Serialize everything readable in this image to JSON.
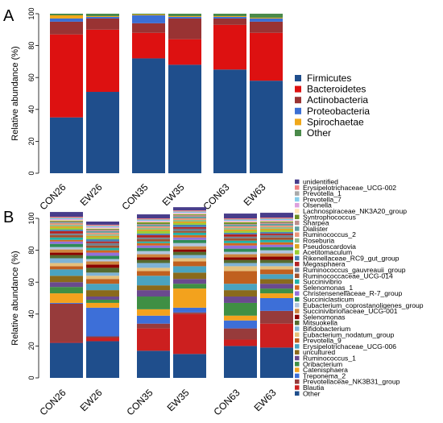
{
  "panels": {
    "a": "A",
    "b": "B"
  },
  "chart_data": [
    {
      "type": "bar",
      "stacked": true,
      "panel": "A",
      "ylabel": "Relative abundance (%)",
      "ylim": [
        0,
        100
      ],
      "yticks": [
        0,
        20,
        40,
        60,
        80,
        100
      ],
      "groups": [
        [
          "CON26",
          "EW26"
        ],
        [
          "CON35",
          "EW35"
        ],
        [
          "CON63",
          "EW63"
        ]
      ],
      "categories": [
        "CON26",
        "EW26",
        "CON35",
        "EW35",
        "CON63",
        "EW63"
      ],
      "legend_position": "right",
      "series": [
        {
          "name": "Firmicutes",
          "color": "#1f4e8c",
          "values": [
            35,
            51,
            72,
            68,
            65,
            58
          ]
        },
        {
          "name": "Bacteroidetes",
          "color": "#dd1111",
          "values": [
            52,
            39,
            16,
            16,
            28,
            30
          ]
        },
        {
          "name": "Actinobacteria",
          "color": "#993333",
          "values": [
            8,
            7,
            6,
            13,
            4,
            7
          ]
        },
        {
          "name": "Proteobacteria",
          "color": "#3b6fd4",
          "values": [
            2,
            1,
            5,
            1,
            1,
            2
          ]
        },
        {
          "name": "Spirochaetae",
          "color": "#f0a81a",
          "values": [
            2,
            0.5,
            0.5,
            0.5,
            0.5,
            0.5
          ]
        },
        {
          "name": "Other",
          "color": "#4a8a4a",
          "values": [
            1,
            1.5,
            0.5,
            1.5,
            1.5,
            2.5
          ]
        }
      ]
    },
    {
      "type": "bar",
      "stacked": true,
      "panel": "B",
      "ylabel": "Relative abundance (%)",
      "ylim": [
        0,
        100
      ],
      "yticks": [
        0,
        20,
        40,
        60,
        80,
        100
      ],
      "groups": [
        [
          "CON26",
          "EW26"
        ],
        [
          "CON35",
          "EW35"
        ],
        [
          "CON63",
          "EW63"
        ]
      ],
      "categories": [
        "CON26",
        "EW26",
        "CON35",
        "EW35",
        "CON63",
        "EW63"
      ],
      "legend_position": "right",
      "series": [
        {
          "name": "Other",
          "color": "#1f4e8c",
          "values": [
            22,
            23,
            17,
            15,
            20,
            19
          ]
        },
        {
          "name": "Blautia",
          "color": "#cc1f1f",
          "values": [
            0.5,
            2,
            14,
            25,
            4,
            15
          ]
        },
        {
          "name": "Prevotellaceae_NK3B31_group",
          "color": "#973b3b",
          "values": [
            24,
            1,
            3,
            1,
            7,
            8
          ]
        },
        {
          "name": "Treponema_2",
          "color": "#3d6fd8",
          "values": [
            0.5,
            18,
            5,
            3,
            5,
            8
          ]
        },
        {
          "name": "Catenisphaera",
          "color": "#f3a21d",
          "values": [
            6,
            3,
            4,
            12,
            3,
            3
          ]
        },
        {
          "name": "Oribacterium",
          "color": "#3f8f44",
          "values": [
            4,
            2,
            8,
            3,
            8,
            3
          ]
        },
        {
          "name": "Ruminococcus_1",
          "color": "#6a4a8e",
          "values": [
            3,
            2,
            4,
            3,
            4,
            3
          ]
        },
        {
          "name": "uncultured",
          "color": "#8a6a1c",
          "values": [
            4,
            4,
            3,
            4,
            4,
            3
          ]
        },
        {
          "name": "Erysipelotrichaceae_UCG-006",
          "color": "#4aa3c0",
          "values": [
            4,
            4,
            6,
            4,
            4,
            3
          ]
        },
        {
          "name": "Prevotella_9",
          "color": "#c0601f",
          "values": [
            2,
            3,
            3,
            3,
            8,
            3
          ]
        },
        {
          "name": "Eubacterium_nodatum_group",
          "color": "#e5c07b",
          "values": [
            2,
            2,
            2,
            2,
            3,
            2
          ]
        },
        {
          "name": "Bifidobacterium",
          "color": "#7fb3d5",
          "values": [
            3,
            2,
            3,
            2,
            2,
            2
          ]
        },
        {
          "name": "Mitsuokella",
          "color": "#556b2f",
          "values": [
            2,
            3,
            2,
            2,
            2,
            2
          ]
        },
        {
          "name": "Selenomonas",
          "color": "#8b0000",
          "values": [
            1.5,
            2,
            1.5,
            1.5,
            1.5,
            2
          ]
        },
        {
          "name": "Succinivibrionaceae_UCG-001",
          "color": "#cd853f",
          "values": [
            2,
            2,
            2,
            2,
            2,
            2
          ]
        },
        {
          "name": "Eubacterium_coprostanoligenes_group",
          "color": "#b0c4de",
          "values": [
            1.5,
            1.5,
            2,
            2,
            1.5,
            2
          ]
        },
        {
          "name": "Succiniclasticum",
          "color": "#2e8b57",
          "values": [
            2,
            2,
            2,
            2,
            2,
            2
          ]
        },
        {
          "name": "Christensenellaceae_R-7_group",
          "color": "#9370db",
          "values": [
            1.5,
            2,
            1.5,
            1.5,
            2,
            1.5
          ]
        },
        {
          "name": "Selenomonas_1",
          "color": "#d2691e",
          "values": [
            1,
            1.5,
            1.5,
            1.5,
            1.5,
            1.5
          ]
        },
        {
          "name": "Succinivibrio",
          "color": "#20b2aa",
          "values": [
            1.5,
            1.5,
            1,
            1.5,
            1.5,
            1.5
          ]
        },
        {
          "name": "Ruminococcaceae_UCG-014",
          "color": "#a0522d",
          "values": [
            1.5,
            1.5,
            1.5,
            1,
            1.5,
            1.5
          ]
        },
        {
          "name": "Ruminococcus_gauvreauii_group",
          "color": "#708090",
          "values": [
            1,
            1.5,
            1,
            1.5,
            1,
            1.5
          ]
        },
        {
          "name": "Megasphaera",
          "color": "#b22222",
          "values": [
            1.5,
            1,
            1.5,
            1,
            1.5,
            1
          ]
        },
        {
          "name": "Rikenellaceae_RC9_gut_group",
          "color": "#4682b4",
          "values": [
            1,
            1.5,
            1,
            1.5,
            1,
            1
          ]
        },
        {
          "name": "Acetitomaculum",
          "color": "#9acd32",
          "values": [
            1,
            1,
            1.5,
            1,
            1,
            1
          ]
        },
        {
          "name": "Pseudoscardovia",
          "color": "#daa520",
          "values": [
            1,
            1,
            1,
            1,
            1,
            1
          ]
        },
        {
          "name": "Roseburia",
          "color": "#8fbc8f",
          "values": [
            1,
            1,
            1,
            1,
            1,
            1
          ]
        },
        {
          "name": "Ruminococcus_2",
          "color": "#e9967a",
          "values": [
            1,
            1,
            1,
            1,
            1,
            1
          ]
        },
        {
          "name": "Dialister",
          "color": "#5f9ea0",
          "values": [
            0.5,
            1,
            1,
            1,
            1,
            1
          ]
        },
        {
          "name": "Sharpea",
          "color": "#bc8f8f",
          "values": [
            0.5,
            1,
            0.5,
            1,
            0.5,
            1
          ]
        },
        {
          "name": "Syntrophococcus",
          "color": "#6b8e23",
          "values": [
            0.5,
            0.5,
            1,
            0.5,
            1,
            0.5
          ]
        },
        {
          "name": "Lachnospiraceae_NK3A20_group",
          "color": "#ffe4b5",
          "values": [
            0.5,
            0.5,
            0.5,
            0.5,
            0.5,
            0.5
          ]
        },
        {
          "name": "Olsenella",
          "color": "#dda0dd",
          "values": [
            0.5,
            0.5,
            0.5,
            0.5,
            0.5,
            0.5
          ]
        },
        {
          "name": "Prevotella_7",
          "color": "#87ceeb",
          "values": [
            0.5,
            0.5,
            0.5,
            0.5,
            0.5,
            0.5
          ]
        },
        {
          "name": "Prevotella_1",
          "color": "#a9a9a9",
          "values": [
            0.5,
            0.5,
            0.5,
            0.5,
            0.5,
            0.5
          ]
        },
        {
          "name": "Erysipelotrichaceae_UCG-002",
          "color": "#f08080",
          "values": [
            0.5,
            0.5,
            0.5,
            0.5,
            0.5,
            0.5
          ]
        },
        {
          "name": "unidentified",
          "color": "#483d8b",
          "values": [
            3,
            2,
            2.5,
            2,
            3,
            3
          ]
        }
      ]
    }
  ]
}
